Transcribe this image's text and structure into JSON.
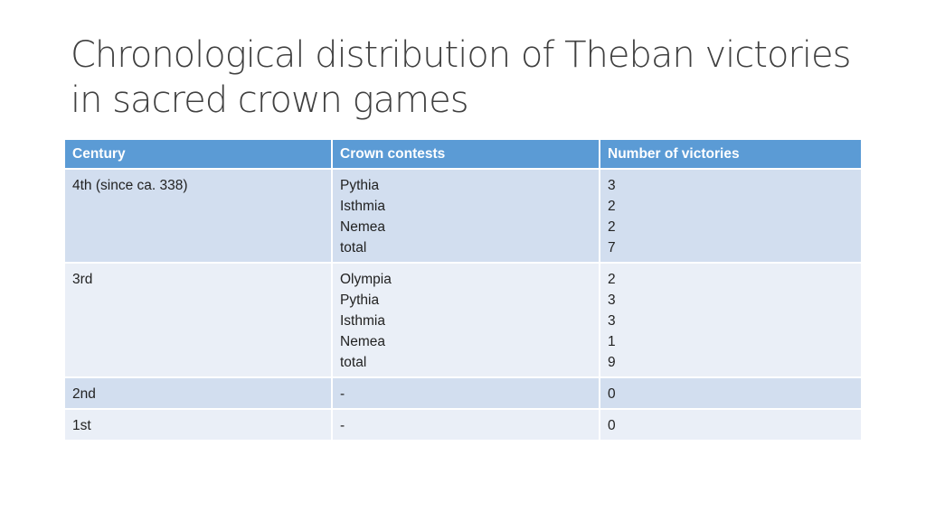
{
  "title": "Chronological distribution of Theban victories in sacred crown games",
  "table": {
    "headers": [
      "Century",
      "Crown contests",
      "Number of victories"
    ],
    "rows": [
      {
        "century": "4th (since ca. 338)",
        "contests": [
          "Pythia",
          "Isthmia",
          "Nemea",
          "total"
        ],
        "victories": [
          "3",
          "2",
          "2",
          "7"
        ]
      },
      {
        "century": "3rd",
        "contests": [
          "Olympia",
          "Pythia",
          "Isthmia",
          "Nemea",
          "total"
        ],
        "victories": [
          "2",
          "3",
          "3",
          "1",
          "9"
        ]
      },
      {
        "century": "2nd",
        "contests": [
          "-"
        ],
        "victories": [
          "0"
        ]
      },
      {
        "century": "1st",
        "contests": [
          "-"
        ],
        "victories": [
          "0"
        ]
      }
    ]
  },
  "colors": {
    "header": "#5b9bd5",
    "row_odd": "#d2deef",
    "row_even": "#eaeff7"
  }
}
